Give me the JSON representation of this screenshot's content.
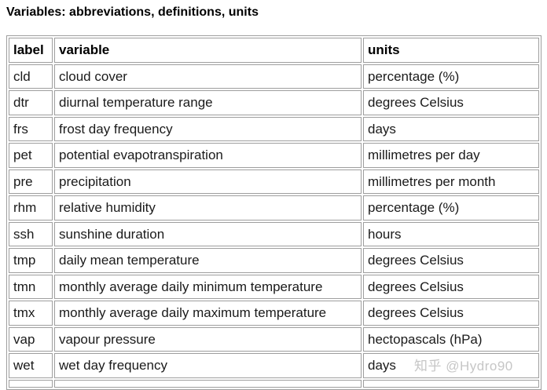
{
  "page": {
    "title": "Variables: abbreviations, definitions, units"
  },
  "table": {
    "columns": [
      {
        "key": "label",
        "header": "label"
      },
      {
        "key": "variable",
        "header": "variable"
      },
      {
        "key": "units",
        "header": "units"
      }
    ],
    "rows": [
      {
        "label": "cld",
        "variable": "cloud cover",
        "units": "percentage (%)"
      },
      {
        "label": "dtr",
        "variable": "diurnal temperature range",
        "units": "degrees Celsius"
      },
      {
        "label": "frs",
        "variable": "frost day frequency",
        "units": "days"
      },
      {
        "label": "pet",
        "variable": "potential evapotranspiration",
        "units": "millimetres per day"
      },
      {
        "label": "pre",
        "variable": "precipitation",
        "units": "millimetres per month"
      },
      {
        "label": "rhm",
        "variable": "relative humidity",
        "units": "percentage (%)"
      },
      {
        "label": "ssh",
        "variable": "sunshine duration",
        "units": "hours"
      },
      {
        "label": "tmp",
        "variable": "daily mean temperature",
        "units": "degrees Celsius"
      },
      {
        "label": "tmn",
        "variable": "monthly average daily minimum temperature",
        "units": "degrees Celsius"
      },
      {
        "label": "tmx",
        "variable": "monthly average daily maximum temperature",
        "units": "degrees Celsius"
      },
      {
        "label": "vap",
        "variable": "vapour pressure",
        "units": "hectopascals (hPa)"
      },
      {
        "label": "wet",
        "variable": "wet day frequency",
        "units": "days"
      }
    ]
  },
  "watermark": {
    "text": "知乎 @Hydro90"
  },
  "colors": {
    "border": "#9e9e9e",
    "text": "#1a1a1a",
    "watermark": "#c6c6c6",
    "background": "#ffffff"
  }
}
